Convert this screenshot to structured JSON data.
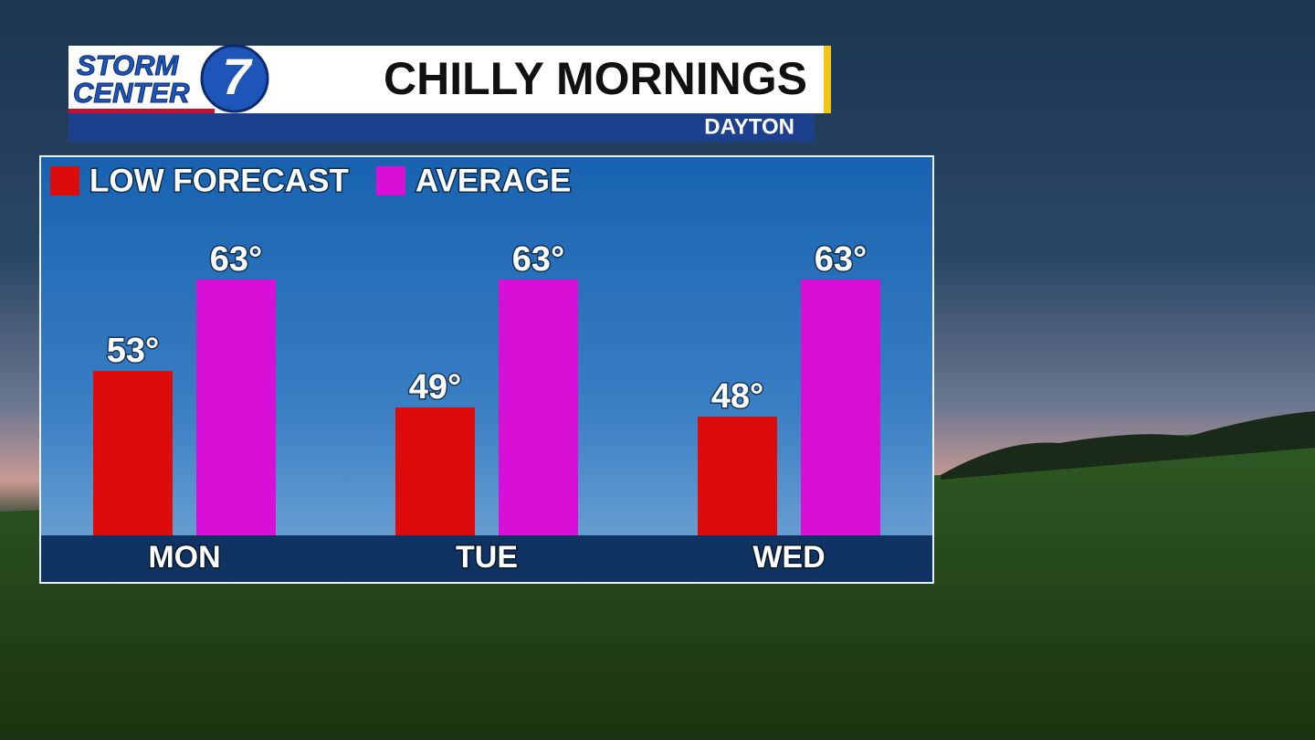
{
  "branding": {
    "line1": "STORM",
    "line2": "CENTER",
    "number": "7"
  },
  "chart_data": {
    "type": "bar",
    "title": "CHILLY MORNINGS",
    "subtitle": "DAYTON",
    "categories": [
      "MON",
      "TUE",
      "WED"
    ],
    "series": [
      {
        "name": "LOW FORECAST",
        "color": "#dd0c0c",
        "values": [
          53,
          49,
          48
        ],
        "value_labels": [
          "53°",
          "49°",
          "48°"
        ]
      },
      {
        "name": "AVERAGE",
        "color": "#d70fd7",
        "values": [
          63,
          63,
          63
        ],
        "value_labels": [
          "63°",
          "63°",
          "63°"
        ]
      }
    ],
    "ylim": [
      35,
      65
    ],
    "legend": "top-left"
  }
}
